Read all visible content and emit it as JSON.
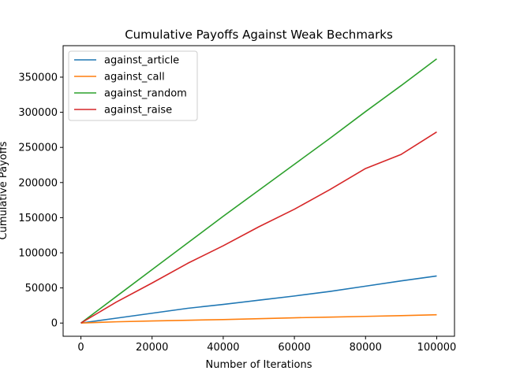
{
  "chart_data": {
    "type": "line",
    "title": "Cumulative Payoffs Against Weak Bechmarks",
    "xlabel": "Number of Iterations",
    "ylabel": "Cumulative Payoffs",
    "xlim": [
      -5000,
      105000
    ],
    "ylim": [
      -18800,
      394800
    ],
    "xticks": [
      0,
      20000,
      40000,
      60000,
      80000,
      100000
    ],
    "yticks": [
      0,
      50000,
      100000,
      150000,
      200000,
      250000,
      300000,
      350000
    ],
    "grid": false,
    "legend_position": "top-left",
    "series": [
      {
        "name": "against_article",
        "color": "#1f77b4",
        "x": [
          0,
          10000,
          20000,
          30000,
          40000,
          50000,
          60000,
          70000,
          80000,
          90000,
          100000
        ],
        "y": [
          0,
          7000,
          14000,
          21000,
          26500,
          32500,
          38500,
          45000,
          52500,
          60000,
          67000
        ]
      },
      {
        "name": "against_call",
        "color": "#ff7f0e",
        "x": [
          0,
          10000,
          20000,
          30000,
          40000,
          50000,
          60000,
          70000,
          80000,
          90000,
          100000
        ],
        "y": [
          0,
          1800,
          3000,
          4000,
          5000,
          6200,
          7500,
          8500,
          9500,
          10500,
          11800
        ]
      },
      {
        "name": "against_random",
        "color": "#2ca02c",
        "x": [
          0,
          10000,
          20000,
          30000,
          40000,
          50000,
          60000,
          70000,
          80000,
          90000,
          100000
        ],
        "y": [
          0,
          38000,
          76000,
          114000,
          152000,
          189000,
          226000,
          263000,
          301000,
          338000,
          376000
        ]
      },
      {
        "name": "against_raise",
        "color": "#d62728",
        "x": [
          0,
          10000,
          20000,
          30000,
          40000,
          50000,
          60000,
          70000,
          80000,
          90000,
          100000
        ],
        "y": [
          0,
          30000,
          57000,
          85000,
          110000,
          137000,
          162000,
          190000,
          220000,
          240000,
          272000
        ]
      }
    ]
  }
}
